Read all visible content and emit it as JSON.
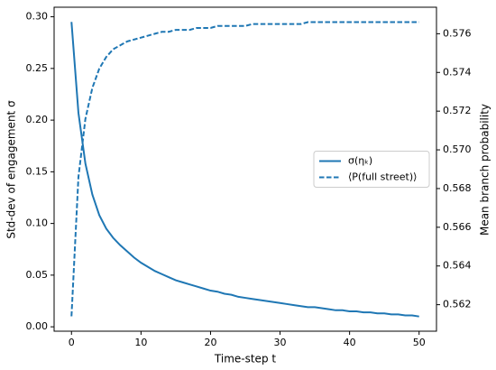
{
  "chart_data": {
    "type": "line",
    "xlabel": "Time-step t",
    "ylabel": "Std-dev of engagement σ",
    "y2label": "Mean branch probability",
    "x": [
      0,
      1,
      2,
      3,
      4,
      5,
      6,
      7,
      8,
      9,
      10,
      11,
      12,
      13,
      14,
      15,
      16,
      17,
      18,
      19,
      20,
      21,
      22,
      23,
      24,
      25,
      26,
      27,
      28,
      29,
      30,
      31,
      32,
      33,
      34,
      35,
      36,
      37,
      38,
      39,
      40,
      41,
      42,
      43,
      44,
      45,
      46,
      47,
      48,
      49,
      50
    ],
    "series": [
      {
        "name": "σ(ηₖ)",
        "color": "#1f77b4",
        "linestyle": "solid",
        "values": [
          0.295,
          0.207,
          0.158,
          0.128,
          0.108,
          0.095,
          0.086,
          0.079,
          0.073,
          0.067,
          0.062,
          0.058,
          0.054,
          0.051,
          0.048,
          0.045,
          0.043,
          0.041,
          0.039,
          0.037,
          0.035,
          0.034,
          0.032,
          0.031,
          0.029,
          0.028,
          0.027,
          0.026,
          0.025,
          0.024,
          0.023,
          0.022,
          0.021,
          0.02,
          0.019,
          0.019,
          0.018,
          0.017,
          0.016,
          0.016,
          0.015,
          0.015,
          0.014,
          0.014,
          0.013,
          0.013,
          0.012,
          0.012,
          0.011,
          0.011,
          0.01
        ]
      },
      {
        "name": "⟨P(full street)⟩",
        "color": "#1f77b4",
        "linestyle": "dashed",
        "axis": "y2",
        "values": [
          0.5614,
          0.5686,
          0.5716,
          0.5732,
          0.5742,
          0.5748,
          0.5752,
          0.5754,
          0.5756,
          0.5757,
          0.5758,
          0.5759,
          0.576,
          0.5761,
          0.5761,
          0.5762,
          0.5762,
          0.5762,
          0.5763,
          0.5763,
          0.5763,
          0.5764,
          0.5764,
          0.5764,
          0.5764,
          0.5764,
          0.5765,
          0.5765,
          0.5765,
          0.5765,
          0.5765,
          0.5765,
          0.5765,
          0.5765,
          0.5766,
          0.5766,
          0.5766,
          0.5766,
          0.5766,
          0.5766,
          0.5766,
          0.5766,
          0.5766,
          0.5766,
          0.5766,
          0.5766,
          0.5766,
          0.5766,
          0.5766,
          0.5766,
          0.5766
        ]
      }
    ],
    "xlim": [
      -2.5,
      52.5
    ],
    "xticks": [
      0,
      10,
      20,
      30,
      40,
      50
    ],
    "ylim": [
      -0.00425,
      0.30925
    ],
    "yticks": [
      {
        "value": 0,
        "label": "0.00"
      },
      0.05,
      {
        "value": 0.1,
        "label": "0.10"
      },
      0.15,
      {
        "value": 0.2,
        "label": "0.20"
      },
      0.25,
      {
        "value": 0.3,
        "label": "0.30"
      }
    ],
    "y2lim": [
      0.56063,
      0.57737
    ],
    "y2ticks": [
      0.562,
      0.564,
      0.566,
      0.568,
      {
        "value": 0.57,
        "label": "0.570"
      },
      0.572,
      0.574,
      0.576
    ],
    "legend": "center right",
    "grid": false
  }
}
